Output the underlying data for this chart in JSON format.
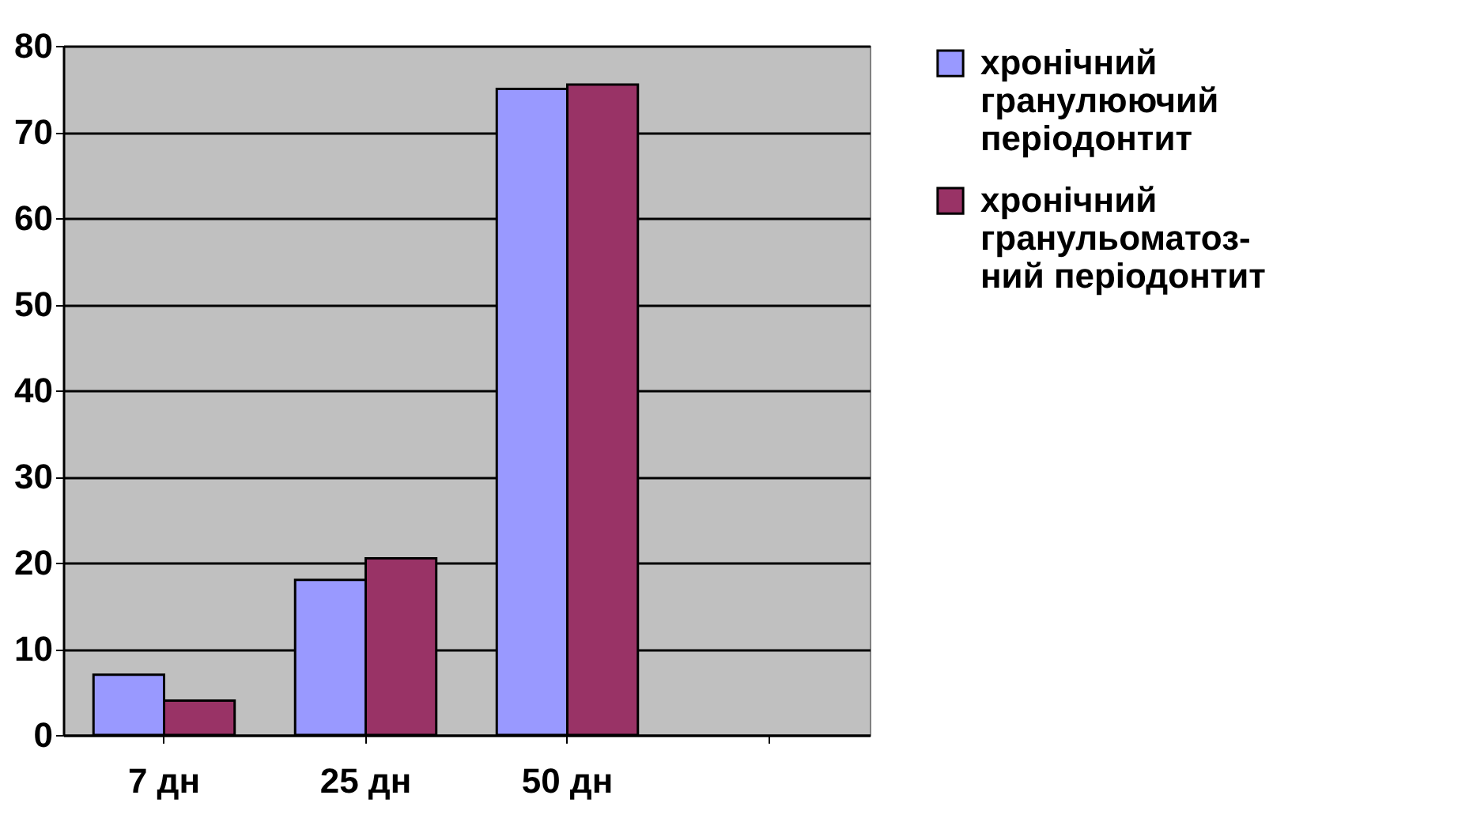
{
  "chart_data": {
    "type": "bar",
    "categories": [
      "7 дн",
      "25 дн",
      "50 дн",
      null
    ],
    "series": [
      {
        "name": "хронічний гранулюючий періодонтит",
        "color": "#9999ff",
        "values": [
          7,
          18,
          75,
          null
        ]
      },
      {
        "name": "хронічний гранульоматоз-ний періодонтит",
        "color": "#993366",
        "values": [
          4,
          20.5,
          75.5,
          null
        ]
      }
    ],
    "ylim": [
      0,
      80
    ],
    "yticks": [
      0,
      10,
      20,
      30,
      40,
      50,
      60,
      70,
      80
    ],
    "grid": "y",
    "legend": "right"
  }
}
